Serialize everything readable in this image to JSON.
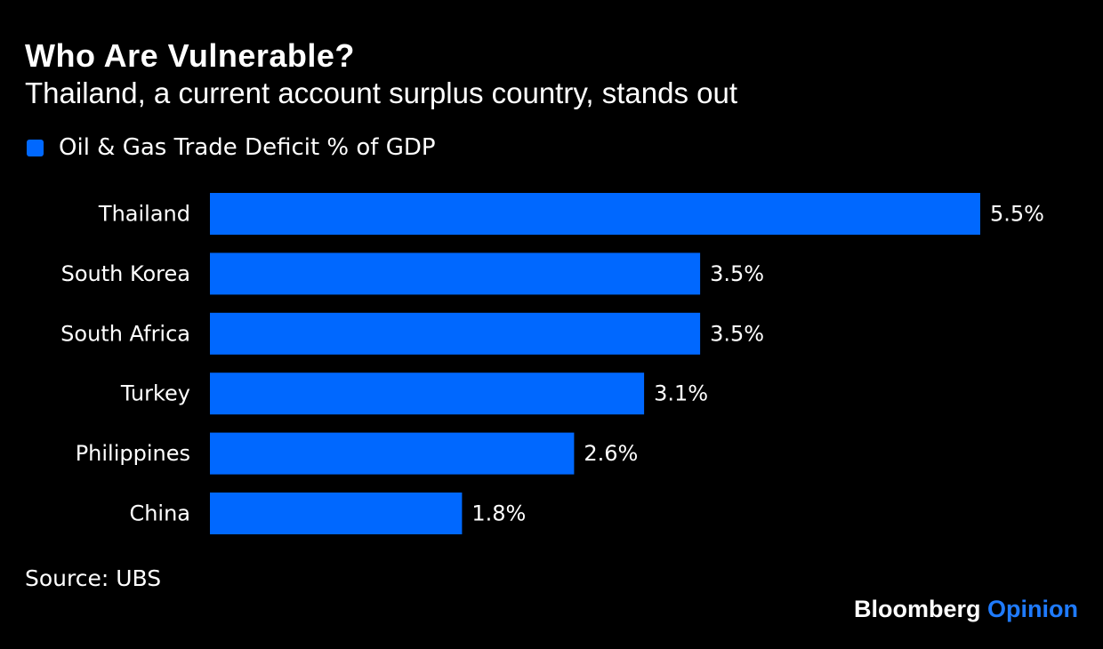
{
  "colors": {
    "background": "#000000",
    "bar": "#0068ff",
    "text": "#ffffff",
    "brand_accent": "#1f7bff"
  },
  "footer": {
    "source": "Source: UBS",
    "brand_primary": "Bloomberg",
    "brand_secondary": "Opinion"
  },
  "chart_data": {
    "type": "bar",
    "orientation": "horizontal",
    "title": "Who Are Vulnerable?",
    "subtitle": "Thailand, a current account surplus country, stands out",
    "categories": [
      "Thailand",
      "South Korea",
      "South Africa",
      "Turkey",
      "Philippines",
      "China"
    ],
    "series": [
      {
        "name": "Oil & Gas Trade Deficit % of GDP",
        "values": [
          5.5,
          3.5,
          3.5,
          3.1,
          2.6,
          1.8
        ],
        "data_labels": [
          "5.5%",
          "3.5%",
          "3.5%",
          "3.1%",
          "2.6%",
          "1.8%"
        ]
      }
    ],
    "xlim": [
      0,
      5.5
    ],
    "grid": false,
    "legend_position": "top-left"
  }
}
